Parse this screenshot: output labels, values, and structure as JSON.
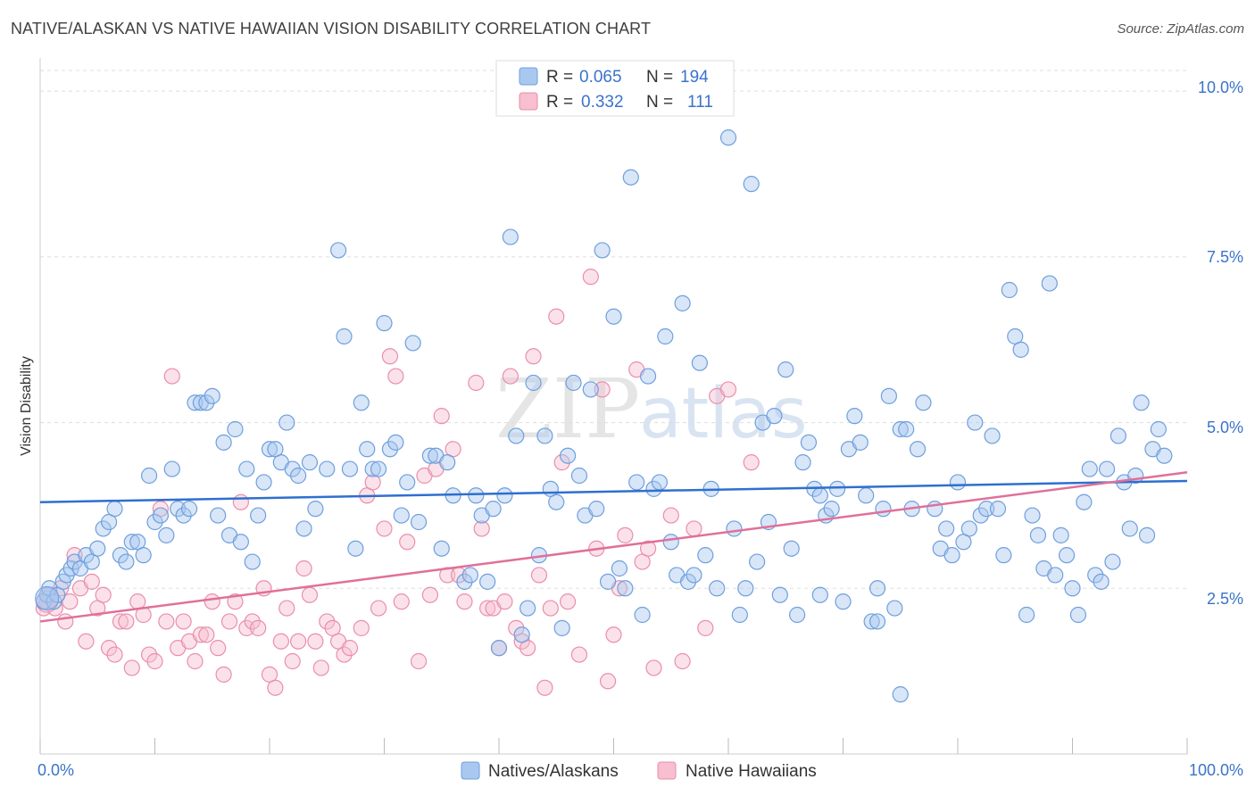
{
  "title": "NATIVE/ALASKAN VS NATIVE HAWAIIAN VISION DISABILITY CORRELATION CHART",
  "source": "Source: ZipAtlas.com",
  "watermark": {
    "zip": "ZIP",
    "atlas": "atlas"
  },
  "colors": {
    "blue_fill": "#a9c8f0",
    "blue_stroke": "#6f9fdc",
    "blue_line": "#2f6fcf",
    "pink_fill": "#f7bfd0",
    "pink_stroke": "#ea8eab",
    "pink_line": "#e0709a",
    "axis_text": "#3b73c9",
    "grid": "#dddddd"
  },
  "legend": {
    "rows": [
      {
        "r_label": "R =",
        "r_value": "0.065",
        "n_label": "N =",
        "n_value": "194"
      },
      {
        "r_label": "R =",
        "r_value": "0.332",
        "n_label": "N =",
        "n_value": "111"
      }
    ]
  },
  "bottom_legend": [
    "Natives/Alaskans",
    "Native Hawaiians"
  ],
  "chart_data": {
    "type": "scatter",
    "ylabel": "Vision Disability",
    "xlim": [
      0,
      100
    ],
    "ylim": [
      0,
      10.5
    ],
    "x_tick_labels": [
      "0.0%",
      "100.0%"
    ],
    "y_ticks": [
      2.5,
      5.0,
      7.5,
      10.0
    ],
    "y_tick_labels": [
      "2.5%",
      "5.0%",
      "7.5%",
      "10.0%"
    ],
    "grid": "horizontal dashed",
    "legend_position": "top-center",
    "series": [
      {
        "name": "Natives/Alaskans",
        "trend": {
          "x": [
            0,
            100
          ],
          "y": [
            3.8,
            4.12
          ]
        },
        "points": [
          [
            0.3,
            2.3
          ],
          [
            0.6,
            2.4
          ],
          [
            0.8,
            2.5
          ],
          [
            1.2,
            2.3
          ],
          [
            1.5,
            2.4
          ],
          [
            2,
            2.6
          ],
          [
            2.3,
            2.7
          ],
          [
            2.7,
            2.8
          ],
          [
            3,
            2.9
          ],
          [
            3.5,
            2.8
          ],
          [
            4,
            3.0
          ],
          [
            4.5,
            2.9
          ],
          [
            5,
            3.1
          ],
          [
            5.5,
            3.4
          ],
          [
            6,
            3.5
          ],
          [
            6.5,
            3.7
          ],
          [
            7,
            3.0
          ],
          [
            7.5,
            2.9
          ],
          [
            8,
            3.2
          ],
          [
            8.5,
            3.2
          ],
          [
            9,
            3.0
          ],
          [
            9.5,
            4.2
          ],
          [
            10,
            3.5
          ],
          [
            10.5,
            3.6
          ],
          [
            11,
            3.3
          ],
          [
            11.5,
            4.3
          ],
          [
            12,
            3.7
          ],
          [
            12.5,
            3.6
          ],
          [
            13,
            3.7
          ],
          [
            13.5,
            5.3
          ],
          [
            14,
            5.3
          ],
          [
            14.5,
            5.3
          ],
          [
            15,
            5.4
          ],
          [
            15.5,
            3.6
          ],
          [
            16,
            4.7
          ],
          [
            16.5,
            3.3
          ],
          [
            17,
            4.9
          ],
          [
            17.5,
            3.2
          ],
          [
            18,
            4.3
          ],
          [
            18.5,
            2.9
          ],
          [
            19,
            3.6
          ],
          [
            19.5,
            4.1
          ],
          [
            20,
            4.6
          ],
          [
            20.5,
            4.6
          ],
          [
            21,
            4.4
          ],
          [
            21.5,
            5.0
          ],
          [
            22,
            4.3
          ],
          [
            22.5,
            4.2
          ],
          [
            23,
            3.4
          ],
          [
            23.5,
            4.4
          ],
          [
            24,
            3.7
          ],
          [
            25,
            4.3
          ],
          [
            26,
            7.6
          ],
          [
            26.5,
            6.3
          ],
          [
            27,
            4.3
          ],
          [
            27.5,
            3.1
          ],
          [
            28,
            5.3
          ],
          [
            28.5,
            4.6
          ],
          [
            29,
            4.3
          ],
          [
            29.5,
            4.3
          ],
          [
            30,
            6.5
          ],
          [
            30.5,
            4.6
          ],
          [
            31,
            4.7
          ],
          [
            31.5,
            3.6
          ],
          [
            32,
            4.1
          ],
          [
            32.5,
            6.2
          ],
          [
            33,
            3.5
          ],
          [
            34,
            4.5
          ],
          [
            34.5,
            4.5
          ],
          [
            35,
            3.1
          ],
          [
            35.5,
            4.4
          ],
          [
            36,
            3.9
          ],
          [
            37,
            2.6
          ],
          [
            37.5,
            2.7
          ],
          [
            38,
            3.9
          ],
          [
            38.5,
            3.6
          ],
          [
            39,
            2.6
          ],
          [
            39.5,
            3.7
          ],
          [
            40,
            1.6
          ],
          [
            40.5,
            3.9
          ],
          [
            41,
            7.8
          ],
          [
            41.5,
            4.8
          ],
          [
            42,
            1.8
          ],
          [
            42.5,
            2.2
          ],
          [
            43,
            5.6
          ],
          [
            43.5,
            3.0
          ],
          [
            44,
            4.8
          ],
          [
            44.5,
            4.0
          ],
          [
            45,
            3.8
          ],
          [
            45.5,
            1.9
          ],
          [
            46,
            4.5
          ],
          [
            46.5,
            5.6
          ],
          [
            47,
            4.2
          ],
          [
            47.5,
            3.6
          ],
          [
            48,
            5.5
          ],
          [
            48.5,
            3.7
          ],
          [
            49,
            7.6
          ],
          [
            49.5,
            2.6
          ],
          [
            50,
            6.6
          ],
          [
            50.5,
            2.8
          ],
          [
            51,
            2.5
          ],
          [
            51.5,
            8.7
          ],
          [
            52,
            4.1
          ],
          [
            52.5,
            2.1
          ],
          [
            53,
            5.7
          ],
          [
            53.5,
            4.0
          ],
          [
            54,
            4.1
          ],
          [
            54.5,
            6.3
          ],
          [
            55,
            3.2
          ],
          [
            55.5,
            2.7
          ],
          [
            56,
            6.8
          ],
          [
            56.5,
            2.6
          ],
          [
            57,
            2.7
          ],
          [
            57.5,
            5.9
          ],
          [
            58,
            3.0
          ],
          [
            58.5,
            4.0
          ],
          [
            59,
            2.5
          ],
          [
            60,
            9.3
          ],
          [
            60.5,
            3.4
          ],
          [
            61,
            2.1
          ],
          [
            61.5,
            2.5
          ],
          [
            62,
            8.6
          ],
          [
            62.5,
            2.9
          ],
          [
            63,
            5.0
          ],
          [
            63.5,
            3.5
          ],
          [
            64,
            5.1
          ],
          [
            64.5,
            2.4
          ],
          [
            65,
            5.8
          ],
          [
            65.5,
            3.1
          ],
          [
            66,
            2.1
          ],
          [
            66.5,
            4.4
          ],
          [
            67,
            4.7
          ],
          [
            67.5,
            4.0
          ],
          [
            68,
            3.9
          ],
          [
            68.5,
            3.6
          ],
          [
            69,
            3.7
          ],
          [
            69.5,
            4.0
          ],
          [
            70,
            2.3
          ],
          [
            70.5,
            4.6
          ],
          [
            71,
            5.1
          ],
          [
            71.5,
            4.7
          ],
          [
            72,
            3.9
          ],
          [
            72.5,
            2.0
          ],
          [
            73,
            2.5
          ],
          [
            73.5,
            3.7
          ],
          [
            74,
            5.4
          ],
          [
            74.5,
            2.2
          ],
          [
            75,
            4.9
          ],
          [
            75.5,
            4.9
          ],
          [
            76,
            3.7
          ],
          [
            76.5,
            4.6
          ],
          [
            77,
            5.3
          ],
          [
            78,
            3.7
          ],
          [
            78.5,
            3.1
          ],
          [
            79,
            3.4
          ],
          [
            79.5,
            3.0
          ],
          [
            80,
            4.1
          ],
          [
            80.5,
            3.2
          ],
          [
            81,
            3.4
          ],
          [
            81.5,
            5.0
          ],
          [
            82,
            3.6
          ],
          [
            82.5,
            3.7
          ],
          [
            83,
            4.8
          ],
          [
            83.5,
            3.7
          ],
          [
            84,
            3.0
          ],
          [
            84.5,
            7.0
          ],
          [
            85,
            6.3
          ],
          [
            85.5,
            6.1
          ],
          [
            86,
            2.1
          ],
          [
            86.5,
            3.6
          ],
          [
            87,
            3.3
          ],
          [
            87.5,
            2.8
          ],
          [
            88,
            7.1
          ],
          [
            88.5,
            2.7
          ],
          [
            89,
            3.3
          ],
          [
            89.5,
            3.0
          ],
          [
            90,
            2.5
          ],
          [
            90.5,
            2.1
          ],
          [
            91,
            3.8
          ],
          [
            91.5,
            4.3
          ],
          [
            92,
            2.7
          ],
          [
            92.5,
            2.6
          ],
          [
            93,
            4.3
          ],
          [
            93.5,
            2.9
          ],
          [
            94,
            4.8
          ],
          [
            94.5,
            4.1
          ],
          [
            95,
            3.4
          ],
          [
            95.5,
            4.2
          ],
          [
            96,
            5.3
          ],
          [
            96.5,
            3.3
          ],
          [
            97,
            4.6
          ],
          [
            97.5,
            4.9
          ],
          [
            98,
            4.5
          ],
          [
            75,
            0.9
          ],
          [
            73,
            2.0
          ],
          [
            68,
            2.4
          ]
        ]
      },
      {
        "name": "Native Hawaiians",
        "trend": {
          "x": [
            0,
            100
          ],
          "y": [
            2.0,
            4.25
          ]
        },
        "points": [
          [
            0.3,
            2.2
          ],
          [
            0.6,
            2.3
          ],
          [
            0.9,
            2.4
          ],
          [
            1.3,
            2.2
          ],
          [
            1.8,
            2.5
          ],
          [
            2.2,
            2.0
          ],
          [
            2.6,
            2.3
          ],
          [
            3,
            3.0
          ],
          [
            3.5,
            2.5
          ],
          [
            4,
            1.7
          ],
          [
            4.5,
            2.6
          ],
          [
            5,
            2.2
          ],
          [
            5.5,
            2.4
          ],
          [
            6,
            1.6
          ],
          [
            6.5,
            1.5
          ],
          [
            7,
            2.0
          ],
          [
            7.5,
            2.0
          ],
          [
            8,
            1.3
          ],
          [
            8.5,
            2.3
          ],
          [
            9,
            2.1
          ],
          [
            9.5,
            1.5
          ],
          [
            10,
            1.4
          ],
          [
            10.5,
            3.7
          ],
          [
            11,
            2.0
          ],
          [
            11.5,
            5.7
          ],
          [
            12,
            1.6
          ],
          [
            12.5,
            2.0
          ],
          [
            13,
            1.7
          ],
          [
            13.5,
            1.4
          ],
          [
            14,
            1.8
          ],
          [
            14.5,
            1.8
          ],
          [
            15,
            2.3
          ],
          [
            15.5,
            1.6
          ],
          [
            16,
            1.2
          ],
          [
            16.5,
            2.0
          ],
          [
            17,
            2.3
          ],
          [
            17.5,
            3.8
          ],
          [
            18,
            1.9
          ],
          [
            18.5,
            2.0
          ],
          [
            19,
            1.9
          ],
          [
            19.5,
            2.5
          ],
          [
            20,
            1.2
          ],
          [
            20.5,
            1.0
          ],
          [
            21,
            1.7
          ],
          [
            21.5,
            2.2
          ],
          [
            22,
            1.4
          ],
          [
            22.5,
            1.7
          ],
          [
            23,
            2.8
          ],
          [
            23.5,
            2.4
          ],
          [
            24,
            1.7
          ],
          [
            24.5,
            1.3
          ],
          [
            25,
            2.0
          ],
          [
            25.5,
            1.9
          ],
          [
            26,
            1.7
          ],
          [
            26.5,
            1.5
          ],
          [
            27,
            1.6
          ],
          [
            28,
            1.9
          ],
          [
            28.5,
            3.9
          ],
          [
            29,
            4.1
          ],
          [
            29.5,
            2.2
          ],
          [
            30,
            3.4
          ],
          [
            30.5,
            6.0
          ],
          [
            31,
            5.7
          ],
          [
            31.5,
            2.3
          ],
          [
            32,
            3.2
          ],
          [
            33,
            1.4
          ],
          [
            33.5,
            4.2
          ],
          [
            34,
            2.4
          ],
          [
            34.5,
            4.3
          ],
          [
            35,
            5.1
          ],
          [
            35.5,
            2.7
          ],
          [
            36,
            4.6
          ],
          [
            36.5,
            2.7
          ],
          [
            37,
            2.3
          ],
          [
            38,
            5.6
          ],
          [
            38.5,
            3.4
          ],
          [
            39,
            2.2
          ],
          [
            39.5,
            2.2
          ],
          [
            40,
            1.6
          ],
          [
            40.5,
            2.3
          ],
          [
            41,
            5.7
          ],
          [
            41.5,
            1.9
          ],
          [
            42,
            1.7
          ],
          [
            42.5,
            1.6
          ],
          [
            43,
            6.0
          ],
          [
            43.5,
            2.7
          ],
          [
            44,
            1.0
          ],
          [
            44.5,
            2.2
          ],
          [
            45,
            6.6
          ],
          [
            45.5,
            4.4
          ],
          [
            46,
            2.3
          ],
          [
            47,
            1.5
          ],
          [
            48,
            7.2
          ],
          [
            48.5,
            3.1
          ],
          [
            49,
            5.5
          ],
          [
            49.5,
            1.1
          ],
          [
            50,
            1.8
          ],
          [
            50.5,
            2.5
          ],
          [
            51,
            3.3
          ],
          [
            52,
            5.8
          ],
          [
            52.5,
            2.9
          ],
          [
            53,
            3.1
          ],
          [
            53.5,
            1.3
          ],
          [
            55,
            3.6
          ],
          [
            56,
            1.4
          ],
          [
            57,
            3.4
          ],
          [
            58,
            1.9
          ],
          [
            59,
            5.4
          ],
          [
            60,
            5.5
          ],
          [
            62,
            4.4
          ]
        ]
      }
    ]
  }
}
